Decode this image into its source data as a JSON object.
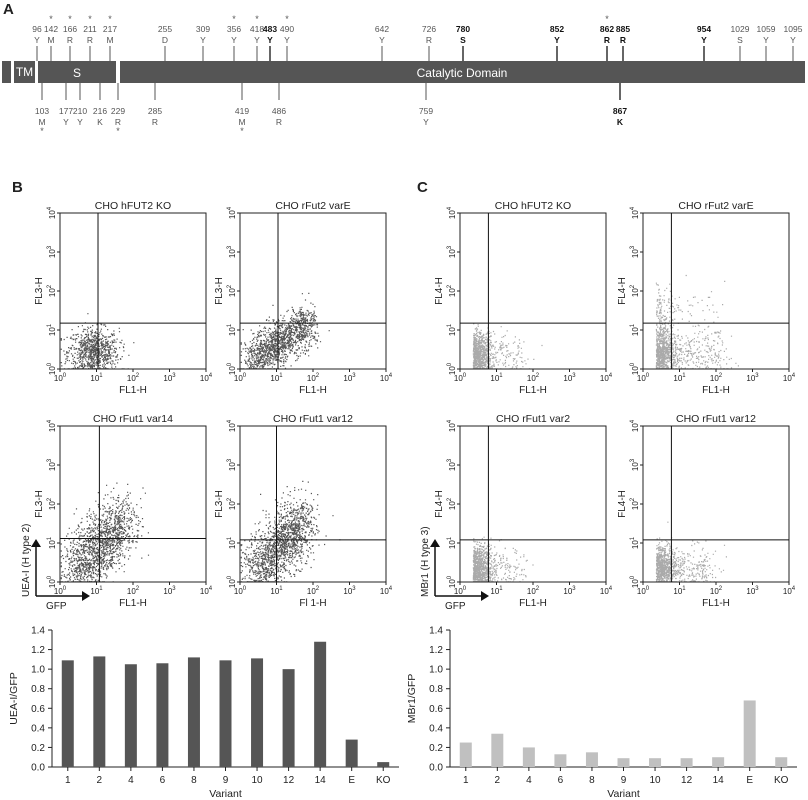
{
  "panel_labels": {
    "a": "A",
    "b": "B",
    "c": "C"
  },
  "gene_map": {
    "domains": [
      {
        "label": "TM"
      },
      {
        "label": "S"
      },
      {
        "label": "Catalytic Domain"
      }
    ],
    "sites_top": [
      {
        "pos": 96,
        "num": "96",
        "aa": "Y",
        "star": false,
        "bold": false
      },
      {
        "pos": 142,
        "num": "142",
        "aa": "M",
        "star": true,
        "bold": false
      },
      {
        "pos": 166,
        "num": "166",
        "aa": "R",
        "star": true,
        "bold": false
      },
      {
        "pos": 211,
        "num": "211",
        "aa": "R",
        "star": true,
        "bold": false
      },
      {
        "pos": 217,
        "num": "217",
        "aa": "M",
        "star": true,
        "bold": false
      },
      {
        "pos": 255,
        "num": "255",
        "aa": "D",
        "star": false,
        "bold": false
      },
      {
        "pos": 309,
        "num": "309",
        "aa": "Y",
        "star": false,
        "bold": false
      },
      {
        "pos": 356,
        "num": "356",
        "aa": "Y",
        "star": true,
        "bold": false
      },
      {
        "pos": 418,
        "num": "418",
        "aa": "Y",
        "star": true,
        "bold": false
      },
      {
        "pos": 483,
        "num": "483",
        "aa": "Y",
        "star": false,
        "bold": true
      },
      {
        "pos": 490,
        "num": "490",
        "aa": "Y",
        "star": true,
        "bold": false
      },
      {
        "pos": 642,
        "num": "642",
        "aa": "Y",
        "star": false,
        "bold": false
      },
      {
        "pos": 726,
        "num": "726",
        "aa": "R",
        "star": false,
        "bold": false
      },
      {
        "pos": 780,
        "num": "780",
        "aa": "S",
        "star": false,
        "bold": true
      },
      {
        "pos": 852,
        "num": "852",
        "aa": "Y",
        "star": false,
        "bold": true
      },
      {
        "pos": 862,
        "num": "862",
        "aa": "R",
        "star": true,
        "bold": true
      },
      {
        "pos": 885,
        "num": "885",
        "aa": "R",
        "star": false,
        "bold": true
      },
      {
        "pos": 954,
        "num": "954",
        "aa": "Y",
        "star": false,
        "bold": true
      },
      {
        "pos": 1029,
        "num": "1029",
        "aa": "S",
        "star": false,
        "bold": false
      },
      {
        "pos": 1059,
        "num": "1059",
        "aa": "Y",
        "star": false,
        "bold": false
      },
      {
        "pos": 1095,
        "num": "1095",
        "aa": "Y",
        "star": false,
        "bold": false
      }
    ],
    "sites_bottom": [
      {
        "pos": 103,
        "num": "103",
        "aa": "M",
        "star": true,
        "bold": false
      },
      {
        "pos": 177,
        "num": "177",
        "aa": "Y",
        "star": false,
        "bold": false
      },
      {
        "pos": 210,
        "num": "210",
        "aa": "Y",
        "star": false,
        "bold": false
      },
      {
        "pos": 216,
        "num": "216",
        "aa": "K",
        "star": false,
        "bold": false
      },
      {
        "pos": 229,
        "num": "229",
        "aa": "R",
        "star": true,
        "bold": false
      },
      {
        "pos": 285,
        "num": "285",
        "aa": "R",
        "star": false,
        "bold": false
      },
      {
        "pos": 419,
        "num": "419",
        "aa": "M",
        "star": true,
        "bold": false
      },
      {
        "pos": 486,
        "num": "486",
        "aa": "R",
        "star": false,
        "bold": false
      },
      {
        "pos": 759,
        "num": "759",
        "aa": "Y",
        "star": false,
        "bold": false
      },
      {
        "pos": 867,
        "num": "867",
        "aa": "K",
        "star": false,
        "bold": true
      }
    ]
  },
  "flow_panels": {
    "B": {
      "color": "#555555",
      "y_axis_label": "UEA-I (H type 2)",
      "x_axis_label": "GFP",
      "plots": [
        {
          "title": "CHO hFUT2 KO",
          "xlabel": "FL1-H",
          "ylabel": "FL3-H",
          "gate_x": 11,
          "gate_y": 15,
          "density": 0.55,
          "spread": "low"
        },
        {
          "title": "CHO rFut2 varE",
          "xlabel": "FL1-H",
          "ylabel": "FL3-H",
          "gate_x": 11,
          "gate_y": 15,
          "density": 0.9,
          "spread": "mid"
        },
        {
          "title": "CHO rFut1 var14",
          "xlabel": "FL1-H",
          "ylabel": "FL3-H",
          "gate_x": 12,
          "gate_y": 13,
          "density": 1.0,
          "spread": "high"
        },
        {
          "title": "CHO rFut1 var12",
          "xlabel": "Fl 1-H",
          "ylabel": "FL3-H",
          "gate_x": 10,
          "gate_y": 12,
          "density": 1.0,
          "spread": "high"
        }
      ]
    },
    "C": {
      "color": "#aaaaaa",
      "y_axis_label": "MBr1 (H type 3)",
      "x_axis_label": "GFP",
      "plots": [
        {
          "title": "CHO hFUT2 KO",
          "xlabel": "FL1-H",
          "ylabel": "FL4-H",
          "gate_x": 6,
          "gate_y": 15,
          "density": 0.7,
          "spread": "c_low"
        },
        {
          "title": "CHO rFut2 varE",
          "xlabel": "FL1-H",
          "ylabel": "FL4-H",
          "gate_x": 6,
          "gate_y": 15,
          "density": 0.85,
          "spread": "c_high"
        },
        {
          "title": "CHO rFut1 var2",
          "xlabel": "FL1-H",
          "ylabel": "FL4-H",
          "gate_x": 6,
          "gate_y": 12,
          "density": 0.7,
          "spread": "c_low"
        },
        {
          "title": "CHO rFut1 var12",
          "xlabel": "FL1-H",
          "ylabel": "FL4-H",
          "gate_x": 6,
          "gate_y": 12,
          "density": 0.7,
          "spread": "c_mid"
        }
      ]
    }
  },
  "flow_axis": {
    "base": "10",
    "exponents": [
      "0",
      "1",
      "2",
      "3",
      "4"
    ]
  },
  "chart_data": [
    {
      "type": "bar",
      "categories": [
        "1",
        "2",
        "4",
        "6",
        "8",
        "9",
        "10",
        "12",
        "14",
        "E",
        "KO"
      ],
      "values": [
        1.09,
        1.13,
        1.05,
        1.06,
        1.12,
        1.09,
        1.11,
        1.0,
        1.28,
        0.28,
        0.05
      ],
      "xlabel": "Variant",
      "ylabel": "UEA-I/GFP",
      "ylim": [
        0,
        1.4
      ],
      "yticks": [
        "0.0",
        "0.2",
        "0.4",
        "0.6",
        "0.8",
        "1.0",
        "1.2",
        "1.4"
      ],
      "color": "#555555"
    },
    {
      "type": "bar",
      "categories": [
        "1",
        "2",
        "4",
        "6",
        "8",
        "9",
        "10",
        "12",
        "14",
        "E",
        "KO"
      ],
      "values": [
        0.25,
        0.34,
        0.2,
        0.13,
        0.15,
        0.09,
        0.09,
        0.09,
        0.1,
        0.68,
        0.1
      ],
      "xlabel": "Variant",
      "ylabel": "MBr1/GFP",
      "ylim": [
        0,
        1.4
      ],
      "yticks": [
        "0.0",
        "0.2",
        "0.4",
        "0.6",
        "0.8",
        "1.0",
        "1.2",
        "1.4"
      ],
      "color": "#c0c0c0"
    }
  ]
}
